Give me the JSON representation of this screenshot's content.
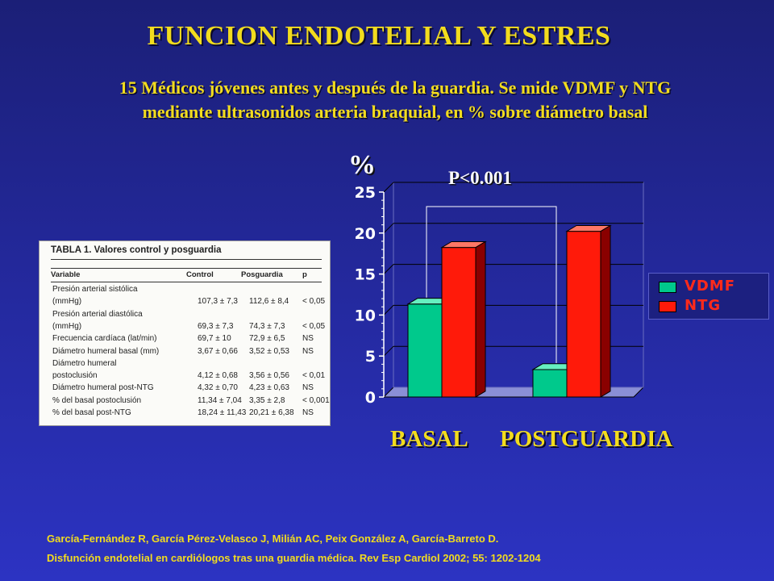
{
  "slide": {
    "title": "FUNCION ENDOTELIAL Y ESTRES",
    "subtitle_line1": "15 Médicos jóvenes antes y después de la guardia. Se mide VDMF y NTG",
    "subtitle_line2": "mediante ultrasonidos arteria braquial, en % sobre diámetro basal",
    "reference_line1": "García-Fernández R, García Pérez-Velasco J, Milián AC, Peix González A, García-Barreto D.",
    "reference_line2": "Disfunción endotelial en cardiólogos tras una guardia médica. Rev Esp Cardiol 2002; 55: 1202-1204"
  },
  "table": {
    "caption": "TABLA 1. Valores control y posguardia",
    "headers": [
      "Variable",
      "Control",
      "Posguardia",
      "p"
    ],
    "rows": [
      [
        "Presión arterial sistólica",
        "",
        "",
        ""
      ],
      [
        "   (mmHg)",
        "107,3 ± 7,3",
        "112,6 ± 8,4",
        "< 0,05"
      ],
      [
        "Presión arterial diastólica",
        "",
        "",
        ""
      ],
      [
        "   (mmHg)",
        "69,3 ± 7,3",
        "74,3 ± 7,3",
        "< 0,05"
      ],
      [
        "Frecuencia cardíaca (lat/min)",
        "69,7 ± 10",
        "72,9 ± 6,5",
        "NS"
      ],
      [
        "Diámetro humeral basal (mm)",
        "3,67 ± 0,66",
        "3,52 ± 0,53",
        "NS"
      ],
      [
        "Diámetro humeral",
        "",
        "",
        ""
      ],
      [
        "   postoclusión",
        "4,12 ± 0,68",
        "3,56 ± 0,56",
        "< 0,01"
      ],
      [
        "Diámetro humeral post-NTG",
        "4,32 ± 0,70",
        "4,23 ± 0,63",
        "NS"
      ],
      [
        "% del basal postoclusión",
        "11,34 ± 7,04",
        "3,35 ± 2,8",
        "< 0,001"
      ],
      [
        "% del basal post-NTG",
        "18,24 ± 11,43",
        "20,21 ± 6,38",
        "NS"
      ]
    ]
  },
  "chart_data": {
    "type": "bar",
    "ylabel": "%",
    "categories": [
      "BASAL",
      "POSTGUARDIA"
    ],
    "series": [
      {
        "name": "VDMF",
        "values": [
          11.34,
          3.35
        ],
        "color": "#00c98c"
      },
      {
        "name": "NTG",
        "values": [
          18.24,
          20.21
        ],
        "color": "#ff1a0a"
      }
    ],
    "ylim": [
      0,
      25
    ],
    "yticks": [
      "0",
      "5",
      "10",
      "15",
      "20",
      "25"
    ],
    "annotation": "P<0.001",
    "legend_position": "right",
    "grid": true
  }
}
